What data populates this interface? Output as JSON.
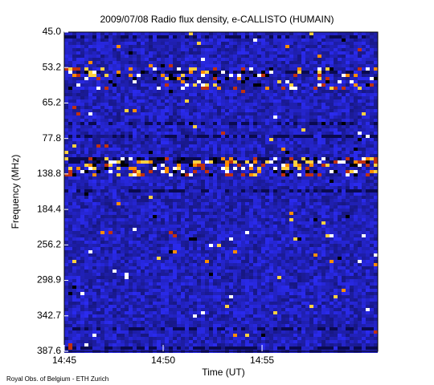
{
  "chart_data": {
    "type": "spectrogram",
    "title": "2009/07/08  Radio flux density, e-CALLISTO (HUMAIN)",
    "xlabel": "Time (UT)",
    "ylabel": "Frequency (MHz)",
    "footer": "Royal Obs. of Belgium - ETH Zurich",
    "xlim": [
      885,
      900.85
    ],
    "xticks": [
      {
        "value": 885,
        "label": "14:45"
      },
      {
        "value": 890,
        "label": "14:50"
      },
      {
        "value": 895,
        "label": "14:55"
      }
    ],
    "ylim": [
      45.0,
      387.6
    ],
    "yticks": [
      {
        "value": 45.0,
        "label": "45.0"
      },
      {
        "value": 53.2,
        "label": "53.2"
      },
      {
        "value": 65.2,
        "label": "65.2"
      },
      {
        "value": 77.8,
        "label": "77.8"
      },
      {
        "value": 138.8,
        "label": "138.8"
      },
      {
        "value": 184.4,
        "label": "184.4"
      },
      {
        "value": 256.2,
        "label": "256.2"
      },
      {
        "value": 298.9,
        "label": "298.9"
      },
      {
        "value": 342.7,
        "label": "342.7"
      },
      {
        "value": 387.6,
        "label": "387.6"
      }
    ]
  }
}
